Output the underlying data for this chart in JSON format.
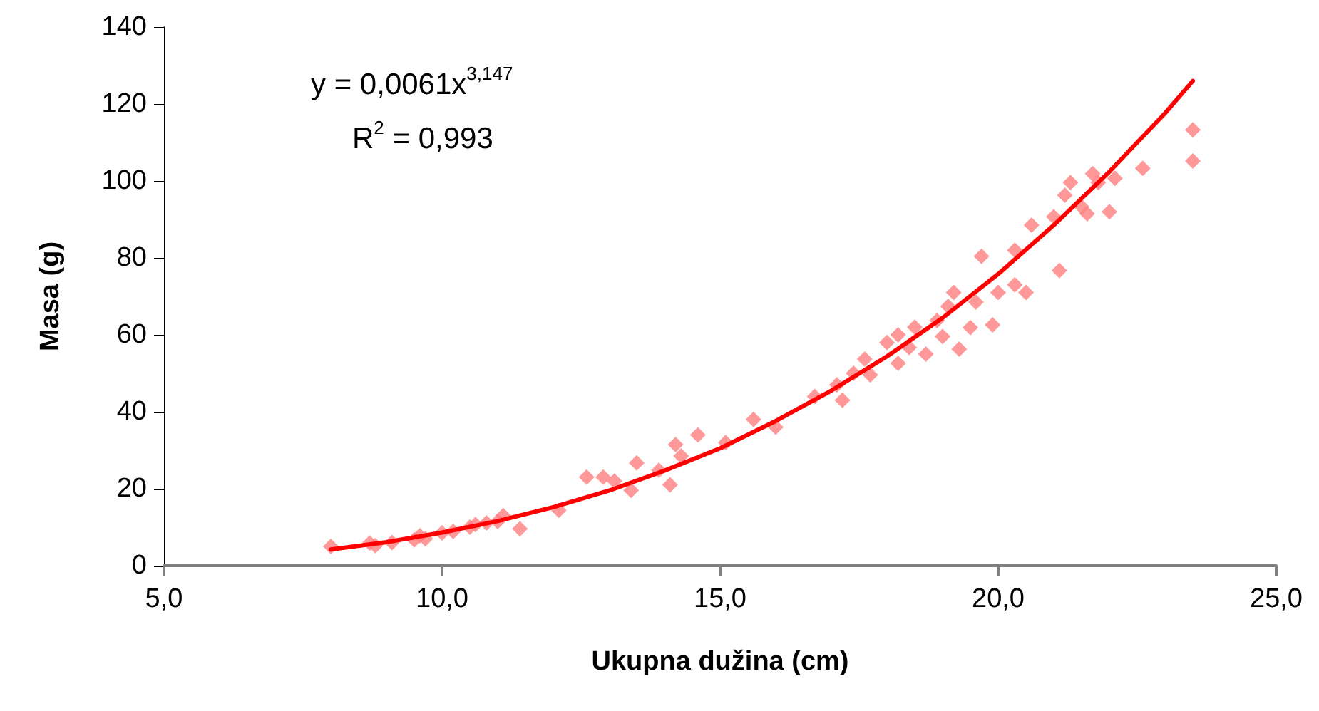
{
  "chart_data": {
    "type": "scatter",
    "xlabel": "Ukupna dužina (cm)",
    "ylabel": "Masa (g)",
    "annotations": [
      "y = 0,0061x$^{3,147}$",
      "R$^{2}$ = 0,993"
    ],
    "xlim": [
      5,
      25
    ],
    "xticks": [
      {
        "value": 5,
        "label": "5,0"
      },
      {
        "value": 10,
        "label": "10,0"
      },
      {
        "value": 15,
        "label": "15,0"
      },
      {
        "value": 20,
        "label": "20,0"
      },
      {
        "value": 25,
        "label": "25,0"
      }
    ],
    "ylim": [
      0,
      140
    ],
    "yticks": [
      0,
      20,
      40,
      60,
      80,
      100,
      120,
      140
    ],
    "grid": false,
    "marker": "diamond",
    "series": [
      {
        "color": "#ff8080",
        "x": [
          8.0,
          8.7,
          8.8,
          9.1,
          9.5,
          9.6,
          9.7,
          10.0,
          10.2,
          10.5,
          10.6,
          10.8,
          11.1,
          11.0,
          11.4,
          12.1,
          12.6,
          12.9,
          13.1,
          13.4,
          13.5,
          13.9,
          14.1,
          14.2,
          14.3,
          14.6,
          15.1,
          15.6,
          16.0,
          16.7,
          17.1,
          17.2,
          17.4,
          17.6,
          17.7,
          18.0,
          18.2,
          18.2,
          18.4,
          18.5,
          18.7,
          18.9,
          19.0,
          19.1,
          19.2,
          19.3,
          19.5,
          19.6,
          19.7,
          19.9,
          20.0,
          20.3,
          20.5,
          20.3,
          20.6,
          21.0,
          21.1,
          21.2,
          21.3,
          21.5,
          21.6,
          21.7,
          21.8,
          22.0,
          22.1,
          22.6,
          23.5,
          23.5
        ],
        "values": [
          5,
          5.9,
          5.2,
          6,
          6.7,
          7.8,
          7,
          8.5,
          8.9,
          10,
          10.7,
          11.1,
          13,
          11.5,
          9.6,
          14.4,
          23,
          23,
          22,
          19.6,
          26.7,
          24.8,
          21,
          31.5,
          28.5,
          34,
          32,
          38,
          36,
          44,
          47,
          43,
          50,
          53.7,
          49.6,
          58,
          60,
          52.6,
          56.7,
          62,
          55,
          63.7,
          59.6,
          67.4,
          71,
          56.3,
          61.9,
          68.5,
          80.4,
          62.6,
          71,
          73,
          71,
          82,
          88.5,
          90.7,
          76.7,
          96.3,
          99.6,
          93.3,
          91.5,
          101.9,
          99.6,
          92,
          100.7,
          103.3,
          113.3,
          105.2
        ]
      },
      {
        "type": "line",
        "color": "#ff0000",
        "marker": "none",
        "line_style": "solid",
        "x": [
          8,
          9,
          10,
          11,
          12,
          13,
          14,
          15,
          16,
          17,
          18,
          19,
          20,
          21,
          22,
          23,
          23.5
        ],
        "values": [
          4.2,
          6.1,
          8.6,
          11.6,
          15.2,
          19.5,
          24.7,
          30.5,
          37.6,
          45.5,
          54.4,
          64.4,
          75.8,
          88.5,
          102.4,
          117.6,
          126
        ]
      }
    ]
  }
}
